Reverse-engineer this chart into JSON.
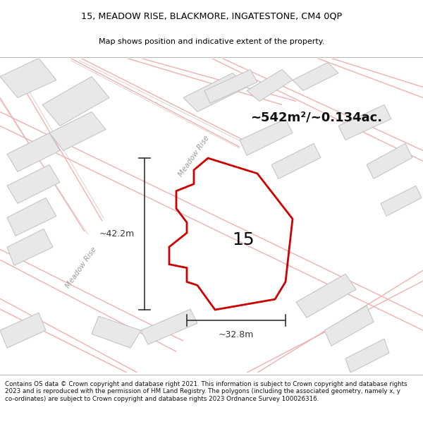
{
  "title_line1": "15, MEADOW RISE, BLACKMORE, INGATESTONE, CM4 0QP",
  "title_line2": "Map shows position and indicative extent of the property.",
  "area_text": "~542m²/~0.134ac.",
  "number_label": "15",
  "dim_width": "~32.8m",
  "dim_height": "~42.2m",
  "footer_text": "Contains OS data © Crown copyright and database right 2021. This information is subject to Crown copyright and database rights 2023 and is reproduced with the permission of HM Land Registry. The polygons (including the associated geometry, namely x, y co-ordinates) are subject to Crown copyright and database rights 2023 Ordnance Survey 100026316.",
  "road_label_left": "Meadow Rise",
  "road_label_upper": "Meadow Rise",
  "map_bg": "#f7f5f2",
  "plot_fill": "none",
  "plot_edge": "#cc0000",
  "road_line_color": "#f0b0b0",
  "road_outline_color": "#d0c0c0",
  "building_fill": "#e8e8e8",
  "building_edge": "#c0c0c0",
  "title_bg": "#ffffff",
  "footer_bg": "#ffffff",
  "dim_color": "#333333",
  "text_color": "#333333",
  "area_color": "#111111"
}
